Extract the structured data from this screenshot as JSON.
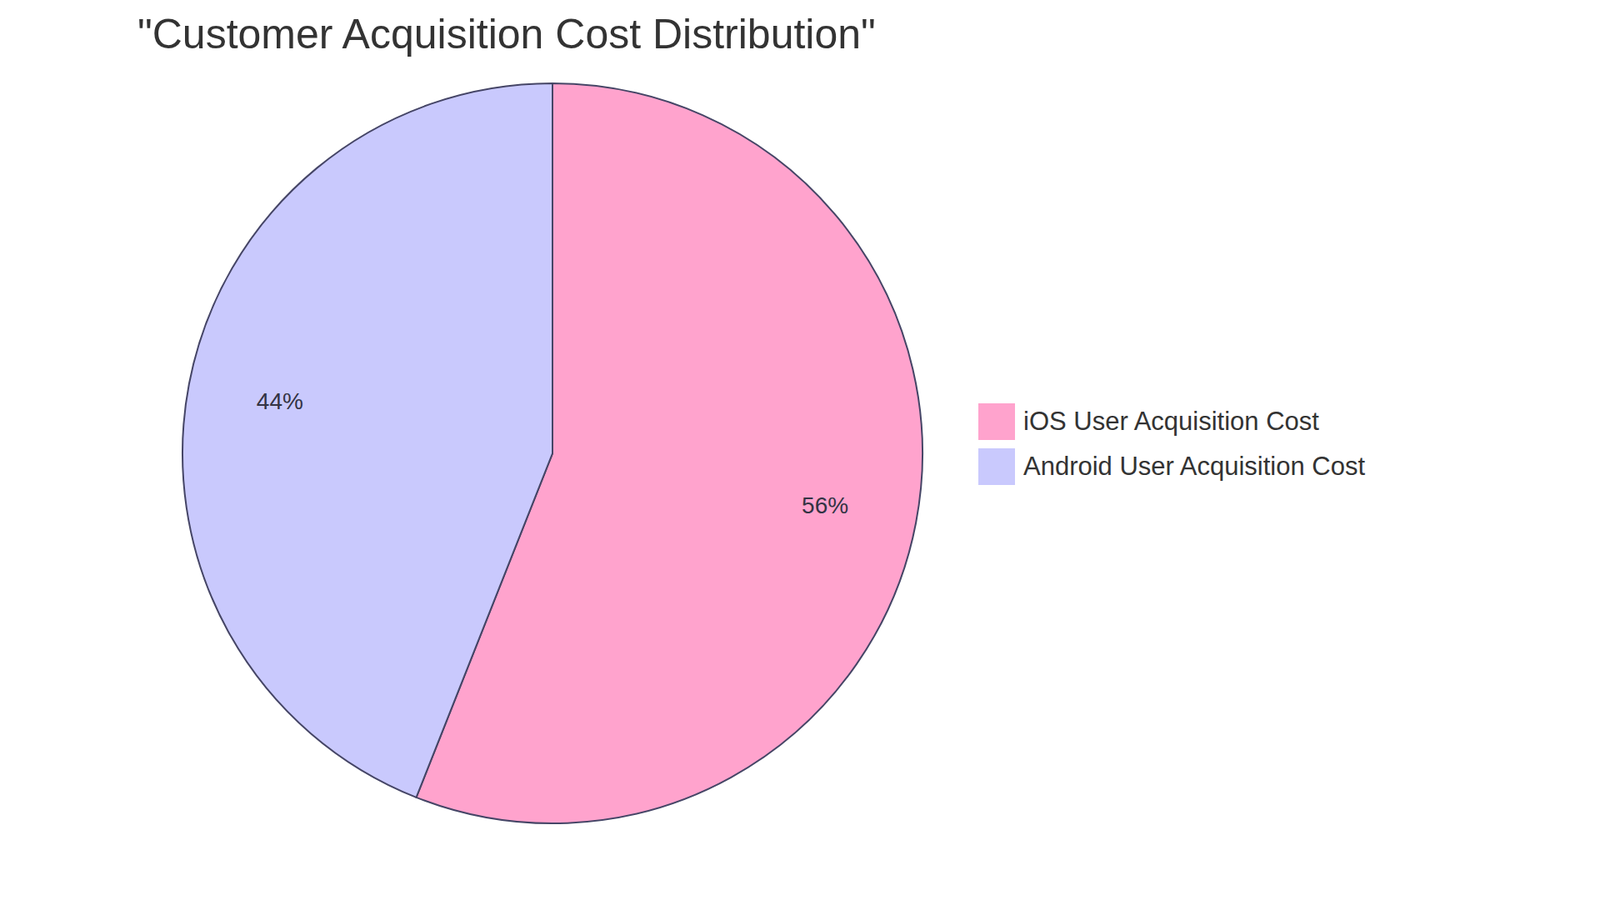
{
  "chart_data": {
    "type": "pie",
    "title": "\"Customer Acquisition Cost Distribution\"",
    "categories": [
      "iOS User Acquisition Cost",
      "Android User Acquisition Cost"
    ],
    "values": [
      56,
      44
    ],
    "value_labels": [
      "56%",
      "44%"
    ],
    "colors": [
      "#FFA3CD",
      "#C9C9FD"
    ],
    "data_labels": true,
    "legend": "right"
  }
}
